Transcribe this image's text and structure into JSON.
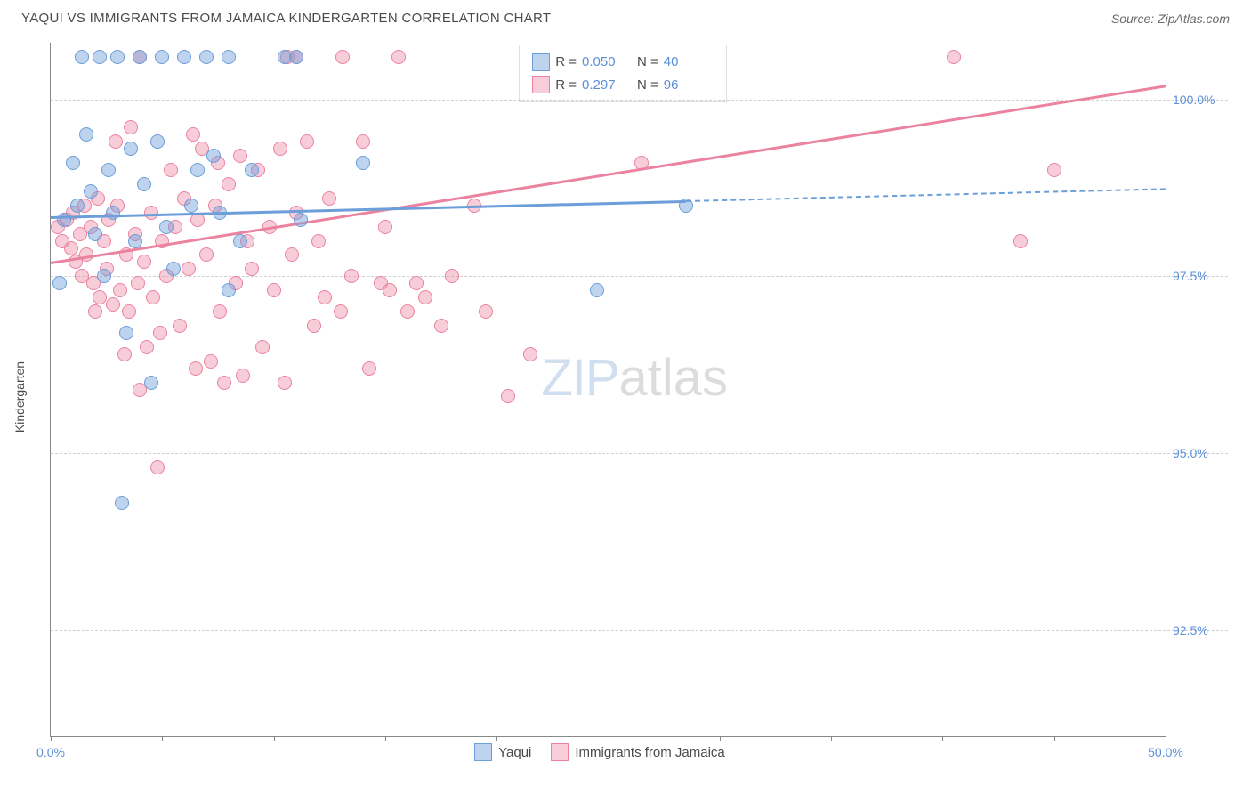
{
  "title": "YAQUI VS IMMIGRANTS FROM JAMAICA KINDERGARTEN CORRELATION CHART",
  "source": "Source: ZipAtlas.com",
  "ylabel": "Kindergarten",
  "watermark": {
    "zip": "ZIP",
    "atlas": "atlas"
  },
  "chart": {
    "type": "scatter",
    "background_color": "#ffffff",
    "grid_color": "#d0d0d0",
    "axis_color": "#888888",
    "tick_label_color": "#5b8fd6",
    "label_color": "#4a4a4a",
    "xlim": [
      0,
      50
    ],
    "ylim": [
      91.0,
      100.8
    ],
    "xticks": [
      0,
      5,
      10,
      15,
      20,
      25,
      30,
      35,
      40,
      45,
      50
    ],
    "xtick_labels": {
      "0": "0.0%",
      "50": "50.0%"
    },
    "yticks": [
      92.5,
      95.0,
      97.5,
      100.0
    ],
    "ytick_labels": [
      "92.5%",
      "95.0%",
      "97.5%",
      "100.0%"
    ],
    "point_radius": 8,
    "point_opacity": 0.45
  },
  "series": {
    "yaqui": {
      "label": "Yaqui",
      "color_fill": "rgba(108,158,218,0.45)",
      "color_stroke": "#6c9eda",
      "R": "0.050",
      "N": "40",
      "regression": {
        "x1": 0,
        "y1": 98.35,
        "x2": 50,
        "y2": 98.75,
        "solid_until_x": 28.5
      },
      "points": [
        [
          0.4,
          97.4
        ],
        [
          0.6,
          98.3
        ],
        [
          1.0,
          99.1
        ],
        [
          1.2,
          98.5
        ],
        [
          1.4,
          100.6
        ],
        [
          1.6,
          99.5
        ],
        [
          1.8,
          98.7
        ],
        [
          2.0,
          98.1
        ],
        [
          2.2,
          100.6
        ],
        [
          2.4,
          97.5
        ],
        [
          2.6,
          99.0
        ],
        [
          2.8,
          98.4
        ],
        [
          3.0,
          100.6
        ],
        [
          3.2,
          94.3
        ],
        [
          3.4,
          96.7
        ],
        [
          3.6,
          99.3
        ],
        [
          3.8,
          98.0
        ],
        [
          4.0,
          100.6
        ],
        [
          4.2,
          98.8
        ],
        [
          4.5,
          96.0
        ],
        [
          4.8,
          99.4
        ],
        [
          5.0,
          100.6
        ],
        [
          5.2,
          98.2
        ],
        [
          5.5,
          97.6
        ],
        [
          6.0,
          100.6
        ],
        [
          6.3,
          98.5
        ],
        [
          6.6,
          99.0
        ],
        [
          7.0,
          100.6
        ],
        [
          7.3,
          99.2
        ],
        [
          7.6,
          98.4
        ],
        [
          8.0,
          97.3
        ],
        [
          8.0,
          100.6
        ],
        [
          8.5,
          98.0
        ],
        [
          9.0,
          99.0
        ],
        [
          10.5,
          100.6
        ],
        [
          11.0,
          100.6
        ],
        [
          11.2,
          98.3
        ],
        [
          14.0,
          99.1
        ],
        [
          24.5,
          97.3
        ],
        [
          28.5,
          98.5
        ]
      ]
    },
    "jamaica": {
      "label": "Immigrants from Jamaica",
      "color_fill": "rgba(235,130,160,0.40)",
      "color_stroke": "#eb82a0",
      "R": "0.297",
      "N": "96",
      "regression": {
        "x1": 0,
        "y1": 97.7,
        "x2": 50,
        "y2": 100.2,
        "solid_until_x": 50
      },
      "points": [
        [
          0.3,
          98.2
        ],
        [
          0.5,
          98.0
        ],
        [
          0.7,
          98.3
        ],
        [
          0.9,
          97.9
        ],
        [
          1.0,
          98.4
        ],
        [
          1.1,
          97.7
        ],
        [
          1.3,
          98.1
        ],
        [
          1.4,
          97.5
        ],
        [
          1.5,
          98.5
        ],
        [
          1.6,
          97.8
        ],
        [
          1.8,
          98.2
        ],
        [
          1.9,
          97.4
        ],
        [
          2.0,
          97.0
        ],
        [
          2.1,
          98.6
        ],
        [
          2.2,
          97.2
        ],
        [
          2.4,
          98.0
        ],
        [
          2.5,
          97.6
        ],
        [
          2.6,
          98.3
        ],
        [
          2.8,
          97.1
        ],
        [
          2.9,
          99.4
        ],
        [
          3.0,
          98.5
        ],
        [
          3.1,
          97.3
        ],
        [
          3.3,
          96.4
        ],
        [
          3.4,
          97.8
        ],
        [
          3.5,
          97.0
        ],
        [
          3.6,
          99.6
        ],
        [
          3.8,
          98.1
        ],
        [
          3.9,
          97.4
        ],
        [
          4.0,
          95.9
        ],
        [
          4.0,
          100.6
        ],
        [
          4.2,
          97.7
        ],
        [
          4.3,
          96.5
        ],
        [
          4.5,
          98.4
        ],
        [
          4.6,
          97.2
        ],
        [
          4.8,
          94.8
        ],
        [
          4.9,
          96.7
        ],
        [
          5.0,
          98.0
        ],
        [
          5.2,
          97.5
        ],
        [
          5.4,
          99.0
        ],
        [
          5.6,
          98.2
        ],
        [
          5.8,
          96.8
        ],
        [
          6.0,
          98.6
        ],
        [
          6.2,
          97.6
        ],
        [
          6.4,
          99.5
        ],
        [
          6.5,
          96.2
        ],
        [
          6.6,
          98.3
        ],
        [
          6.8,
          99.3
        ],
        [
          7.0,
          97.8
        ],
        [
          7.2,
          96.3
        ],
        [
          7.4,
          98.5
        ],
        [
          7.5,
          99.1
        ],
        [
          7.6,
          97.0
        ],
        [
          7.8,
          96.0
        ],
        [
          8.0,
          98.8
        ],
        [
          8.3,
          97.4
        ],
        [
          8.5,
          99.2
        ],
        [
          8.6,
          96.1
        ],
        [
          8.8,
          98.0
        ],
        [
          9.0,
          97.6
        ],
        [
          9.3,
          99.0
        ],
        [
          9.5,
          96.5
        ],
        [
          9.8,
          98.2
        ],
        [
          10.0,
          97.3
        ],
        [
          10.3,
          99.3
        ],
        [
          10.5,
          96.0
        ],
        [
          10.6,
          100.6
        ],
        [
          10.8,
          97.8
        ],
        [
          11.0,
          98.4
        ],
        [
          11.0,
          100.6
        ],
        [
          11.5,
          99.4
        ],
        [
          11.8,
          96.8
        ],
        [
          12.0,
          98.0
        ],
        [
          12.3,
          97.2
        ],
        [
          12.5,
          98.6
        ],
        [
          13.0,
          97.0
        ],
        [
          13.1,
          100.6
        ],
        [
          13.5,
          97.5
        ],
        [
          14.0,
          99.4
        ],
        [
          14.3,
          96.2
        ],
        [
          14.8,
          97.4
        ],
        [
          15.0,
          98.2
        ],
        [
          15.2,
          97.3
        ],
        [
          15.6,
          100.6
        ],
        [
          16.0,
          97.0
        ],
        [
          16.4,
          97.4
        ],
        [
          16.8,
          97.2
        ],
        [
          17.5,
          96.8
        ],
        [
          18.0,
          97.5
        ],
        [
          19.0,
          98.5
        ],
        [
          19.5,
          97.0
        ],
        [
          20.5,
          95.8
        ],
        [
          21.5,
          96.4
        ],
        [
          26.5,
          99.1
        ],
        [
          40.5,
          100.6
        ],
        [
          43.5,
          98.0
        ],
        [
          45.0,
          99.0
        ]
      ]
    }
  },
  "legend": {
    "r_label": "R =",
    "n_label": "N ="
  }
}
